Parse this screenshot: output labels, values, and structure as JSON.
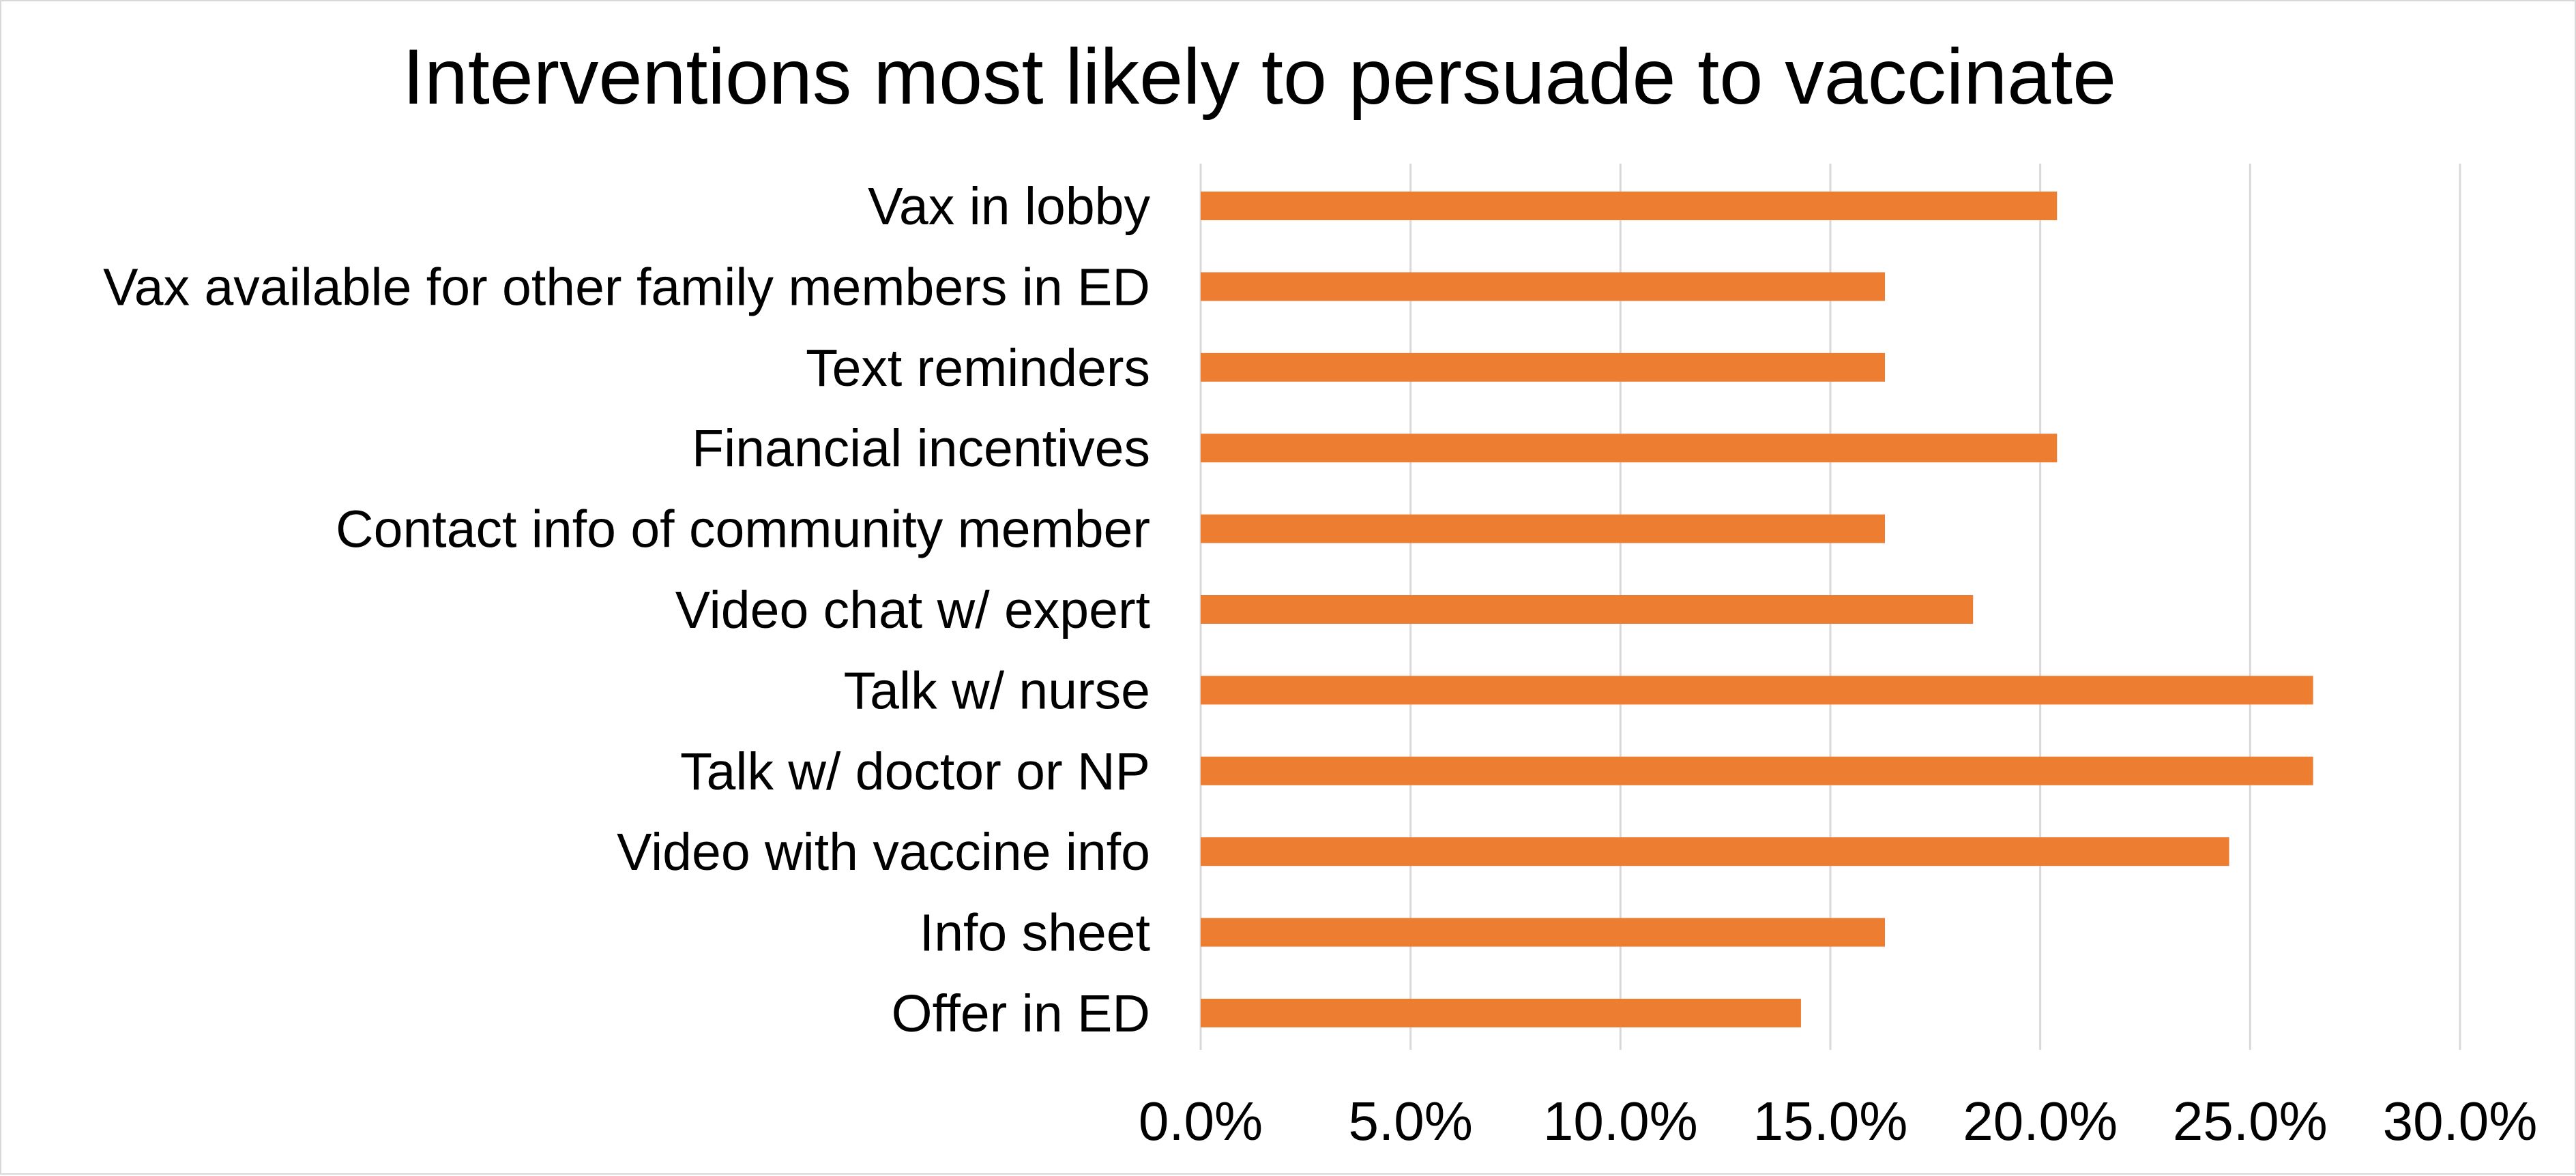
{
  "chart_data": {
    "type": "bar",
    "orientation": "horizontal",
    "title": "Interventions most likely to persuade to vaccinate",
    "xlabel": "",
    "ylabel": "",
    "categories": [
      "Vax in lobby",
      "Vax available for other family members in ED",
      "Text reminders",
      "Financial incentives",
      "Contact info of community member",
      "Video chat w/ expert",
      "Talk w/ nurse",
      "Talk w/ doctor or NP",
      "Video with vaccine info",
      "Info sheet",
      "Offer in ED"
    ],
    "values": [
      20.4,
      16.3,
      16.3,
      20.4,
      16.3,
      18.4,
      26.5,
      26.5,
      24.5,
      16.3,
      14.3
    ],
    "xlim": [
      0,
      30
    ],
    "x_ticks": [
      0,
      5,
      10,
      15,
      20,
      25,
      30
    ],
    "x_tick_labels": [
      "0.0%",
      "5.0%",
      "10.0%",
      "15.0%",
      "20.0%",
      "25.0%",
      "30.0%"
    ],
    "grid": "vertical",
    "legend": "none",
    "colors": {
      "bar": "#ED7D31",
      "gridline": "#d9d9d9",
      "text": "#000000"
    }
  }
}
